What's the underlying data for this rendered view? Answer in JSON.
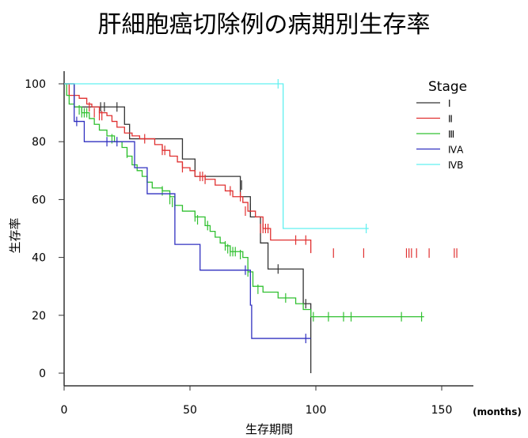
{
  "chart_data": {
    "type": "line",
    "title": "肝細胞癌切除例の病期別生存率",
    "xlabel": "生存期間",
    "xunit": "(months)",
    "ylabel": "生存率",
    "xlim": [
      0,
      160
    ],
    "ylim": [
      0,
      100
    ],
    "xticks": [
      0,
      50,
      100,
      150
    ],
    "yticks": [
      0,
      20,
      40,
      60,
      80,
      100
    ],
    "legend": {
      "title": "Stage",
      "placement": "top-right"
    },
    "series": [
      {
        "name": "Ⅰ",
        "color": "#333333",
        "steps": [
          [
            0,
            100
          ],
          [
            4,
            92
          ],
          [
            24,
            86
          ],
          [
            26,
            81
          ],
          [
            47,
            74
          ],
          [
            52,
            68
          ],
          [
            70,
            61
          ],
          [
            74,
            54
          ],
          [
            78,
            45
          ],
          [
            81,
            36
          ],
          [
            95,
            24
          ],
          [
            98,
            0
          ]
        ],
        "censored": [
          [
            14.5,
            92
          ],
          [
            16,
            92
          ],
          [
            21,
            92
          ],
          [
            70.5,
            65
          ],
          [
            74,
            57
          ],
          [
            85,
            36
          ],
          [
            96,
            24
          ]
        ]
      },
      {
        "name": "Ⅱ",
        "color": "#e03030",
        "steps": [
          [
            0,
            100
          ],
          [
            2,
            96
          ],
          [
            6,
            95
          ],
          [
            9,
            93
          ],
          [
            11,
            92
          ],
          [
            14,
            90
          ],
          [
            17,
            89
          ],
          [
            19,
            87
          ],
          [
            21,
            85
          ],
          [
            24,
            83
          ],
          [
            27,
            82
          ],
          [
            30,
            81
          ],
          [
            36,
            79
          ],
          [
            39,
            77
          ],
          [
            42,
            75
          ],
          [
            45,
            73
          ],
          [
            47,
            71
          ],
          [
            50,
            70
          ],
          [
            52,
            68
          ],
          [
            56,
            67
          ],
          [
            60,
            65
          ],
          [
            64,
            63
          ],
          [
            67,
            61
          ],
          [
            71,
            59
          ],
          [
            73,
            56
          ],
          [
            76,
            54
          ],
          [
            79,
            50
          ],
          [
            82,
            46
          ],
          [
            98,
            41.5
          ]
        ],
        "censored": [
          [
            10,
            92
          ],
          [
            12,
            90
          ],
          [
            14,
            89
          ],
          [
            15,
            89
          ],
          [
            32,
            81
          ],
          [
            39,
            77
          ],
          [
            40,
            77
          ],
          [
            47,
            71
          ],
          [
            54,
            68
          ],
          [
            55,
            68
          ],
          [
            56,
            67
          ],
          [
            66,
            63
          ],
          [
            70,
            61
          ],
          [
            72,
            56
          ],
          [
            78,
            50
          ],
          [
            79,
            50
          ],
          [
            80,
            50
          ],
          [
            81,
            50
          ],
          [
            92,
            46
          ],
          [
            96,
            46
          ],
          [
            107,
            41.5
          ],
          [
            119,
            41.5
          ],
          [
            136,
            41.5
          ],
          [
            137,
            41.5
          ],
          [
            138,
            41.5
          ],
          [
            140,
            41.5
          ],
          [
            145,
            41.5
          ],
          [
            155,
            41.5
          ],
          [
            156,
            41.5
          ]
        ]
      },
      {
        "name": "Ⅲ",
        "color": "#30c030",
        "steps": [
          [
            0,
            100
          ],
          [
            1,
            96
          ],
          [
            2,
            93
          ],
          [
            4,
            92
          ],
          [
            7,
            90
          ],
          [
            10,
            88
          ],
          [
            12,
            86
          ],
          [
            14,
            84
          ],
          [
            17,
            82
          ],
          [
            20,
            80
          ],
          [
            23,
            78
          ],
          [
            25,
            75
          ],
          [
            27,
            72
          ],
          [
            29,
            70
          ],
          [
            31,
            68
          ],
          [
            33,
            66
          ],
          [
            35,
            64
          ],
          [
            39,
            63
          ],
          [
            42,
            61
          ],
          [
            44,
            58
          ],
          [
            47,
            56
          ],
          [
            52,
            54
          ],
          [
            56,
            51
          ],
          [
            58,
            49
          ],
          [
            60,
            47
          ],
          [
            62,
            45
          ],
          [
            64,
            44
          ],
          [
            66,
            42
          ],
          [
            71,
            40
          ],
          [
            73,
            35
          ],
          [
            75,
            30
          ],
          [
            79,
            28
          ],
          [
            85,
            26
          ],
          [
            92,
            24
          ],
          [
            95,
            22
          ],
          [
            98,
            19.5
          ],
          [
            143,
            19.5
          ]
        ],
        "censored": [
          [
            6,
            91
          ],
          [
            7,
            90
          ],
          [
            8,
            90
          ],
          [
            9,
            90
          ],
          [
            19,
            81
          ],
          [
            25,
            76
          ],
          [
            39,
            63
          ],
          [
            42,
            60
          ],
          [
            43,
            59
          ],
          [
            44,
            58
          ],
          [
            52,
            54
          ],
          [
            53,
            53
          ],
          [
            57,
            51
          ],
          [
            64,
            44
          ],
          [
            65,
            43
          ],
          [
            66,
            42
          ],
          [
            67,
            42
          ],
          [
            68,
            42
          ],
          [
            70,
            41
          ],
          [
            73,
            35
          ],
          [
            77,
            29
          ],
          [
            88,
            26
          ],
          [
            99,
            19.5
          ],
          [
            105,
            19.5
          ],
          [
            111,
            19.5
          ],
          [
            114,
            19.5
          ],
          [
            134,
            19.5
          ],
          [
            142,
            19.5
          ]
        ]
      },
      {
        "name": "ⅣA",
        "color": "#3030c0",
        "steps": [
          [
            0,
            100
          ],
          [
            4,
            87
          ],
          [
            8,
            80
          ],
          [
            28,
            71
          ],
          [
            33,
            62
          ],
          [
            44,
            44.5
          ],
          [
            54,
            35.6
          ],
          [
            74,
            23.5
          ],
          [
            74.5,
            12
          ],
          [
            98,
            12
          ]
        ],
        "censored": [
          [
            5,
            87
          ],
          [
            17,
            80
          ],
          [
            21,
            80
          ],
          [
            72,
            35.6
          ],
          [
            96,
            12
          ]
        ]
      },
      {
        "name": "ⅣB",
        "color": "#60f0f0",
        "steps": [
          [
            0,
            100
          ],
          [
            87,
            50
          ],
          [
            121,
            50
          ]
        ],
        "censored": [
          [
            85,
            100
          ],
          [
            120,
            50
          ]
        ]
      }
    ]
  }
}
